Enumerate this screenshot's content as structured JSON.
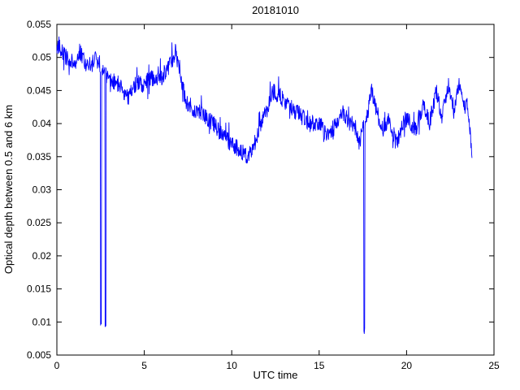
{
  "chart_data": {
    "type": "line",
    "title": "20181010",
    "xlabel": "UTC time",
    "ylabel": "Optical depth between 0.5 and 6 km",
    "xlim": [
      0,
      25
    ],
    "ylim": [
      0.005,
      0.055
    ],
    "xticks": [
      0,
      5,
      10,
      15,
      20,
      25
    ],
    "xtick_labels": [
      "0",
      "5",
      "10",
      "15",
      "20",
      "25"
    ],
    "yticks": [
      0.005,
      0.01,
      0.015,
      0.02,
      0.025,
      0.03,
      0.035,
      0.04,
      0.045,
      0.05,
      0.055
    ],
    "ytick_labels": [
      "0.005",
      "0.01",
      "0.015",
      "0.02",
      "0.025",
      "0.03",
      "0.035",
      "0.04",
      "0.045",
      "0.05",
      "0.055"
    ],
    "grid": false,
    "legend": null,
    "line_color": "#0000ff",
    "background": "#ffffff",
    "x_range_data": [
      0,
      23.74
    ],
    "sample_step": 0.02,
    "noise_amplitude": 0.0013,
    "trend_points": [
      [
        0.0,
        0.051
      ],
      [
        0.1,
        0.052
      ],
      [
        0.5,
        0.05
      ],
      [
        1.0,
        0.049
      ],
      [
        1.3,
        0.051
      ],
      [
        1.7,
        0.049
      ],
      [
        2.0,
        0.049
      ],
      [
        2.3,
        0.05
      ],
      [
        2.6,
        0.048
      ],
      [
        3.0,
        0.047
      ],
      [
        3.5,
        0.046
      ],
      [
        4.1,
        0.044
      ],
      [
        4.5,
        0.046
      ],
      [
        5.0,
        0.046
      ],
      [
        5.5,
        0.047
      ],
      [
        6.0,
        0.047
      ],
      [
        6.5,
        0.049
      ],
      [
        6.8,
        0.051
      ],
      [
        7.1,
        0.047
      ],
      [
        7.4,
        0.043
      ],
      [
        8.0,
        0.042
      ],
      [
        8.5,
        0.041
      ],
      [
        9.0,
        0.04
      ],
      [
        9.5,
        0.038
      ],
      [
        10.0,
        0.037
      ],
      [
        10.5,
        0.036
      ],
      [
        10.9,
        0.035
      ],
      [
        11.3,
        0.037
      ],
      [
        11.7,
        0.04
      ],
      [
        12.0,
        0.042
      ],
      [
        12.4,
        0.045
      ],
      [
        12.8,
        0.044
      ],
      [
        13.2,
        0.043
      ],
      [
        13.6,
        0.042
      ],
      [
        14.0,
        0.041
      ],
      [
        14.5,
        0.04
      ],
      [
        15.0,
        0.04
      ],
      [
        15.5,
        0.038
      ],
      [
        16.0,
        0.04
      ],
      [
        16.3,
        0.042
      ],
      [
        16.7,
        0.04
      ],
      [
        17.0,
        0.04
      ],
      [
        17.3,
        0.037
      ],
      [
        17.5,
        0.039
      ],
      [
        17.8,
        0.042
      ],
      [
        18.0,
        0.045
      ],
      [
        18.3,
        0.042
      ],
      [
        18.6,
        0.039
      ],
      [
        19.0,
        0.041
      ],
      [
        19.4,
        0.037
      ],
      [
        19.7,
        0.039
      ],
      [
        20.0,
        0.041
      ],
      [
        20.5,
        0.039
      ],
      [
        21.0,
        0.043
      ],
      [
        21.3,
        0.04
      ],
      [
        21.7,
        0.045
      ],
      [
        22.0,
        0.041
      ],
      [
        22.4,
        0.046
      ],
      [
        22.7,
        0.042
      ],
      [
        23.0,
        0.046
      ],
      [
        23.3,
        0.042
      ],
      [
        23.5,
        0.043
      ],
      [
        23.74,
        0.036
      ]
    ],
    "spikes": [
      {
        "x": 2.52,
        "y": 0.0095
      },
      {
        "x": 2.78,
        "y": 0.009
      },
      {
        "x": 17.58,
        "y": 0.008
      }
    ]
  }
}
